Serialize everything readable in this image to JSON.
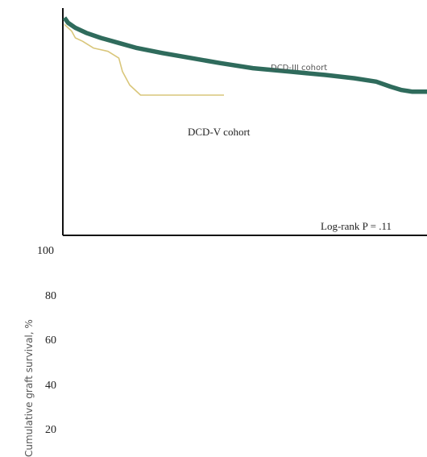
{
  "chart_data": {
    "type": "line",
    "ylabel": "Cumulative graft survival, %",
    "yticks": [
      "100",
      "80",
      "60",
      "40",
      "20"
    ],
    "annotation": "Log-rank P = .11",
    "series": [
      {
        "name": "DCD-III cohort",
        "color": "#2f6b5c",
        "points": [
          [
            0.0,
            100
          ],
          [
            0.01,
            98.5
          ],
          [
            0.03,
            97
          ],
          [
            0.06,
            95.5
          ],
          [
            0.1,
            94
          ],
          [
            0.15,
            92.5
          ],
          [
            0.2,
            91
          ],
          [
            0.27,
            89.5
          ],
          [
            0.35,
            88
          ],
          [
            0.43,
            86.5
          ],
          [
            0.52,
            85
          ],
          [
            0.62,
            84
          ],
          [
            0.72,
            83
          ],
          [
            0.8,
            82
          ],
          [
            0.86,
            81
          ],
          [
            0.9,
            79.5
          ],
          [
            0.93,
            78.5
          ],
          [
            0.96,
            78
          ],
          [
            1.0,
            78
          ]
        ]
      },
      {
        "name": "DCD-V cohort",
        "color": "#d9c67a",
        "points": [
          [
            0.0,
            98
          ],
          [
            0.02,
            96
          ],
          [
            0.03,
            94
          ],
          [
            0.05,
            93
          ],
          [
            0.08,
            91
          ],
          [
            0.12,
            90
          ],
          [
            0.15,
            88
          ],
          [
            0.16,
            84
          ],
          [
            0.18,
            80
          ],
          [
            0.21,
            77
          ],
          [
            0.26,
            77
          ],
          [
            0.3,
            77
          ],
          [
            0.38,
            77
          ],
          [
            0.44,
            77
          ]
        ]
      }
    ]
  }
}
